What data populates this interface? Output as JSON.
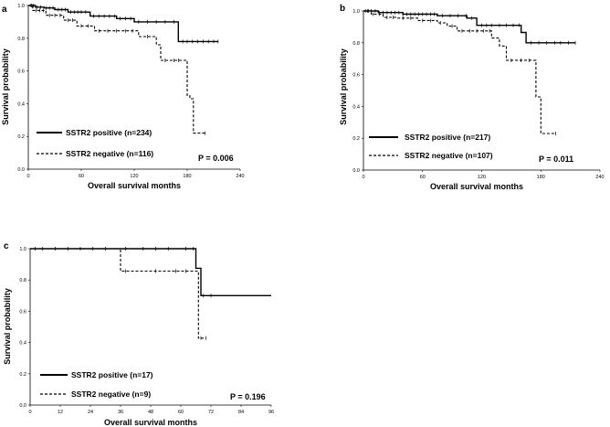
{
  "chart_data": [
    {
      "type": "line",
      "panel_label": "a",
      "xlabel": "Overall survival months",
      "ylabel": "Survival probability",
      "xlim": [
        0,
        240
      ],
      "ylim": [
        0,
        1.0
      ],
      "xticks": [
        0,
        60,
        120,
        180,
        240
      ],
      "yticks": [
        0.0,
        0.2,
        0.4,
        0.6,
        0.8,
        1.0
      ],
      "pvalue": "P = 0.006",
      "series": [
        {
          "name": "SSTR2 positive (n=234)",
          "style": "solid",
          "steps": [
            [
              0,
              1.0
            ],
            [
              8,
              0.99
            ],
            [
              18,
              0.985
            ],
            [
              30,
              0.975
            ],
            [
              45,
              0.96
            ],
            [
              70,
              0.935
            ],
            [
              100,
              0.92
            ],
            [
              120,
              0.9
            ],
            [
              170,
              0.78
            ],
            [
              215,
              0.78
            ]
          ],
          "censors": [
            3,
            6,
            10,
            14,
            20,
            24,
            28,
            34,
            38,
            42,
            48,
            52,
            56,
            60,
            65,
            74,
            80,
            86,
            92,
            98,
            104,
            110,
            116,
            125,
            135,
            145,
            155,
            165,
            175,
            180,
            186,
            192,
            198,
            204,
            210,
            215
          ]
        },
        {
          "name": "SSTR2 negative (n=116)",
          "style": "dashed",
          "steps": [
            [
              0,
              1.0
            ],
            [
              5,
              0.97
            ],
            [
              20,
              0.94
            ],
            [
              40,
              0.91
            ],
            [
              55,
              0.875
            ],
            [
              75,
              0.845
            ],
            [
              125,
              0.81
            ],
            [
              145,
              0.76
            ],
            [
              150,
              0.665
            ],
            [
              180,
              0.45
            ],
            [
              183,
              0.43
            ],
            [
              187,
              0.22
            ],
            [
              200,
              0.22
            ]
          ],
          "censors": [
            4,
            9,
            13,
            17,
            24,
            30,
            36,
            45,
            50,
            60,
            68,
            80,
            90,
            100,
            110,
            118,
            135,
            155,
            165,
            170,
            200
          ]
        }
      ]
    },
    {
      "type": "line",
      "panel_label": "b",
      "xlabel": "Overall survival months",
      "ylabel": "Survival probability",
      "xlim": [
        0,
        240
      ],
      "ylim": [
        0,
        1.0
      ],
      "xticks": [
        0,
        60,
        120,
        180,
        240
      ],
      "yticks": [
        0.0,
        0.2,
        0.4,
        0.6,
        0.8,
        1.0
      ],
      "pvalue": "P = 0.011",
      "series": [
        {
          "name": "SSTR2 positive (n=217)",
          "style": "solid",
          "steps": [
            [
              0,
              1.0
            ],
            [
              15,
              0.99
            ],
            [
              40,
              0.98
            ],
            [
              75,
              0.97
            ],
            [
              105,
              0.955
            ],
            [
              115,
              0.91
            ],
            [
              160,
              0.865
            ],
            [
              165,
              0.8
            ],
            [
              215,
              0.8
            ]
          ],
          "censors": [
            2,
            5,
            8,
            12,
            16,
            20,
            24,
            28,
            32,
            36,
            40,
            44,
            48,
            52,
            56,
            60,
            64,
            68,
            72,
            80,
            88,
            96,
            104,
            110,
            120,
            125,
            130,
            138,
            145,
            152,
            158,
            170,
            178,
            186,
            194,
            200,
            208,
            215
          ]
        },
        {
          "name": "SSTR2 negative (n=107)",
          "style": "dashed",
          "steps": [
            [
              0,
              1.0
            ],
            [
              8,
              0.98
            ],
            [
              20,
              0.96
            ],
            [
              35,
              0.955
            ],
            [
              55,
              0.94
            ],
            [
              75,
              0.925
            ],
            [
              85,
              0.905
            ],
            [
              95,
              0.875
            ],
            [
              130,
              0.83
            ],
            [
              138,
              0.78
            ],
            [
              145,
              0.69
            ],
            [
              175,
              0.46
            ],
            [
              180,
              0.23
            ],
            [
              195,
              0.23
            ]
          ],
          "censors": [
            4,
            10,
            16,
            24,
            30,
            40,
            48,
            60,
            68,
            78,
            90,
            100,
            108,
            115,
            122,
            128,
            150,
            160,
            168,
            195
          ]
        }
      ]
    },
    {
      "type": "line",
      "panel_label": "c",
      "xlabel": "Overall survival months",
      "ylabel": "Survival probability",
      "xlim": [
        0,
        96
      ],
      "ylim": [
        0,
        1.0
      ],
      "xticks": [
        0,
        12,
        24,
        36,
        48,
        60,
        72,
        84,
        96
      ],
      "yticks": [
        0.0,
        0.2,
        0.4,
        0.6,
        0.8,
        1.0
      ],
      "pvalue": "P = 0.196",
      "series": [
        {
          "name": "SSTR2 positive (n=17)",
          "style": "solid",
          "steps": [
            [
              0,
              1.0
            ],
            [
              66,
              0.875
            ],
            [
              68,
              0.7
            ],
            [
              96,
              0.7
            ]
          ],
          "censors": [
            2,
            5,
            10,
            15,
            20,
            25,
            30,
            38,
            45,
            50,
            55,
            62,
            65,
            69,
            72
          ]
        },
        {
          "name": "SSTR2 negative (n=9)",
          "style": "dashed",
          "steps": [
            [
              0,
              1.0
            ],
            [
              36,
              0.857
            ],
            [
              67,
              0.428
            ],
            [
              70,
              0.428
            ]
          ],
          "censors": [
            38,
            50,
            58,
            62,
            68,
            70
          ]
        }
      ]
    }
  ]
}
